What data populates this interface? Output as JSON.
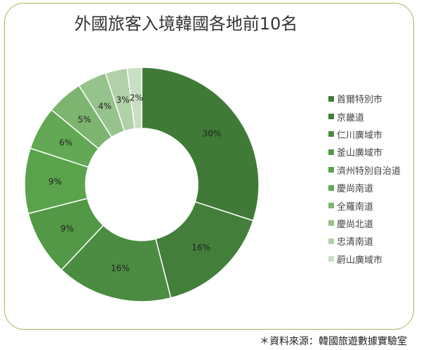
{
  "chart_data": {
    "type": "pie",
    "variant": "donut",
    "title": "外國旅客入境韓國各地前10名",
    "categories": [
      "首爾特別市",
      "京畿道",
      "仁川廣域市",
      "釜山廣域市",
      "濟州特別自治道",
      "慶尚南道",
      "全羅南道",
      "慶尚北道",
      "忠清南道",
      "蔚山廣域市"
    ],
    "values": [
      30,
      16,
      16,
      9,
      9,
      6,
      5,
      4,
      3,
      2
    ],
    "data_labels": [
      "30%",
      "16%",
      "16%",
      "9%",
      "9%",
      "6%",
      "5%",
      "4%",
      "3%",
      "2%"
    ],
    "colors": [
      "#3f7b37",
      "#437f3b",
      "#4b8c42",
      "#529846",
      "#5aa34c",
      "#63a855",
      "#7db570",
      "#96c28b",
      "#b1d1a8",
      "#c9dfc3"
    ],
    "legend_position": "right"
  },
  "source": "＊資料來源：韓國旅遊數據實驗室"
}
